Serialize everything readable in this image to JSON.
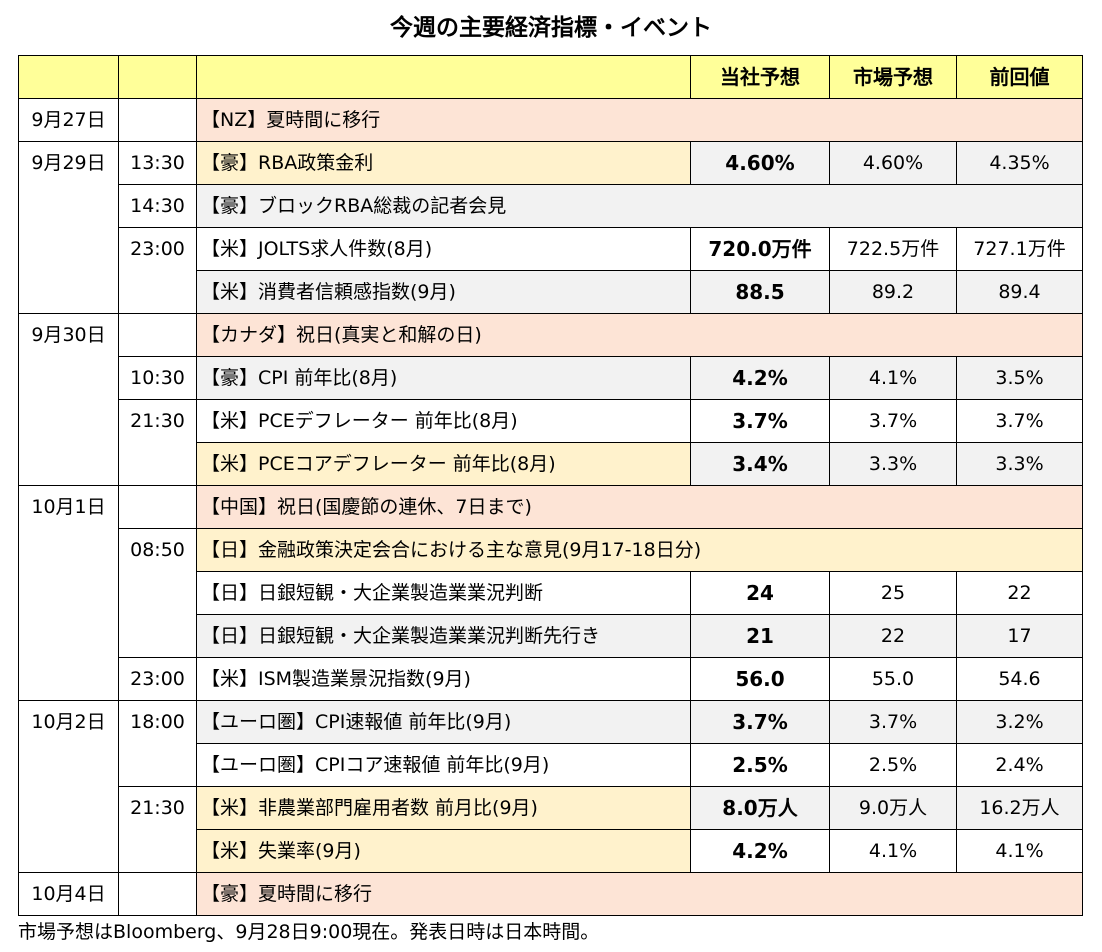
{
  "title": "今週の主要経済指標・イベント",
  "header": {
    "col_forecast": "当社予想",
    "col_market": "市場予想",
    "col_previous": "前回値"
  },
  "rows": [
    {
      "date": "9月27日",
      "time": "",
      "event": "【NZ】夏時間に移行",
      "forecast": "",
      "market": "",
      "previous": ""
    },
    {
      "date": "9月29日",
      "time": "13:30",
      "event": "【豪】RBA政策金利",
      "forecast": "4.60%",
      "market": "4.60%",
      "previous": "4.35%"
    },
    {
      "date": "",
      "time": "14:30",
      "event": "【豪】ブロックRBA総裁の記者会見",
      "forecast": "",
      "market": "",
      "previous": ""
    },
    {
      "date": "",
      "time": "23:00",
      "event": "【米】JOLTS求人件数(8月)",
      "forecast": "720.0万件",
      "market": "722.5万件",
      "previous": "727.1万件"
    },
    {
      "date": "",
      "time": "",
      "event": "【米】消費者信頼感指数(9月)",
      "forecast": "88.5",
      "market": "89.2",
      "previous": "89.4"
    },
    {
      "date": "9月30日",
      "time": "",
      "event": "【カナダ】祝日(真実と和解の日)",
      "forecast": "",
      "market": "",
      "previous": ""
    },
    {
      "date": "",
      "time": "10:30",
      "event": "【豪】CPI 前年比(8月)",
      "forecast": "4.2%",
      "market": "4.1%",
      "previous": "3.5%"
    },
    {
      "date": "",
      "time": "21:30",
      "event": "【米】PCEデフレーター 前年比(8月)",
      "forecast": "3.7%",
      "market": "3.7%",
      "previous": "3.7%"
    },
    {
      "date": "",
      "time": "",
      "event": "【米】PCEコアデフレーター 前年比(8月)",
      "forecast": "3.4%",
      "market": "3.3%",
      "previous": "3.3%"
    },
    {
      "date": "10月1日",
      "time": "",
      "event": "【中国】祝日(国慶節の連休、7日まで)",
      "forecast": "",
      "market": "",
      "previous": ""
    },
    {
      "date": "",
      "time": "08:50",
      "event": "【日】金融政策決定会合における主な意見(9月17-18日分)",
      "forecast": "",
      "market": "",
      "previous": ""
    },
    {
      "date": "",
      "time": "",
      "event": "【日】日銀短観・大企業製造業業況判断",
      "forecast": "24",
      "market": "25",
      "previous": "22"
    },
    {
      "date": "",
      "time": "",
      "event": "【日】日銀短観・大企業製造業業況判断先行き",
      "forecast": "21",
      "market": "22",
      "previous": "17"
    },
    {
      "date": "",
      "time": "23:00",
      "event": "【米】ISM製造業景況指数(9月)",
      "forecast": "56.0",
      "market": "55.0",
      "previous": "54.6"
    },
    {
      "date": "10月2日",
      "time": "18:00",
      "event": "【ユーロ圏】CPI速報値 前年比(9月)",
      "forecast": "3.7%",
      "market": "3.7%",
      "previous": "3.2%"
    },
    {
      "date": "",
      "time": "",
      "event": "【ユーロ圏】CPIコア速報値 前年比(9月)",
      "forecast": "2.5%",
      "market": "2.5%",
      "previous": "2.4%"
    },
    {
      "date": "",
      "time": "21:30",
      "event": "【米】非農業部門雇用者数 前月比(9月)",
      "forecast": "8.0万人",
      "market": "9.0万人",
      "previous": "16.2万人"
    },
    {
      "date": "",
      "time": "",
      "event": "【米】失業率(9月)",
      "forecast": "4.2%",
      "market": "4.1%",
      "previous": "4.1%"
    },
    {
      "date": "10月4日",
      "time": "",
      "event": "【豪】夏時間に移行",
      "forecast": "",
      "market": "",
      "previous": ""
    }
  ],
  "footnote": "市場予想はBloomberg、9月28日9:00現在。発表日時は日本時間。"
}
